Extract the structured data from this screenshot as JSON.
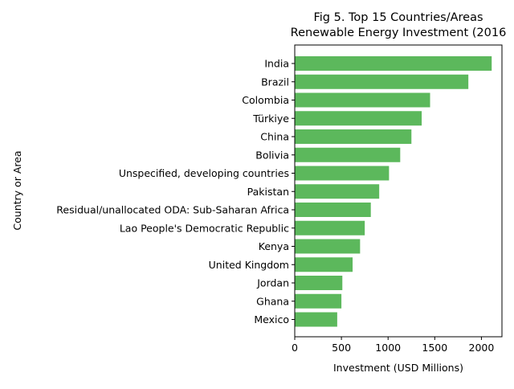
{
  "chart_data": {
    "type": "bar",
    "orientation": "horizontal",
    "title_line1": "Fig 5. Top 15 Countries/Areas",
    "title_line2": "Renewable Energy Investment (2016",
    "xlabel": "Investment (USD Millions)",
    "ylabel": "Country or Area",
    "xlim": [
      0,
      2220
    ],
    "xticks": [
      0,
      500,
      1000,
      1500,
      2000
    ],
    "grid": false,
    "bar_color": "#5cb85c",
    "categories": [
      "India",
      "Brazil",
      "Colombia",
      "Türkiye",
      "China",
      "Bolivia",
      "Unspecified, developing countries",
      "Pakistan",
      "Residual/unallocated ODA: Sub-Saharan Africa",
      "Lao People's Democratic Republic",
      "Kenya",
      "United Kingdom",
      "Jordan",
      "Ghana",
      "Mexico"
    ],
    "values": [
      2110,
      1860,
      1450,
      1360,
      1250,
      1130,
      1010,
      905,
      815,
      750,
      700,
      620,
      510,
      500,
      455
    ]
  }
}
